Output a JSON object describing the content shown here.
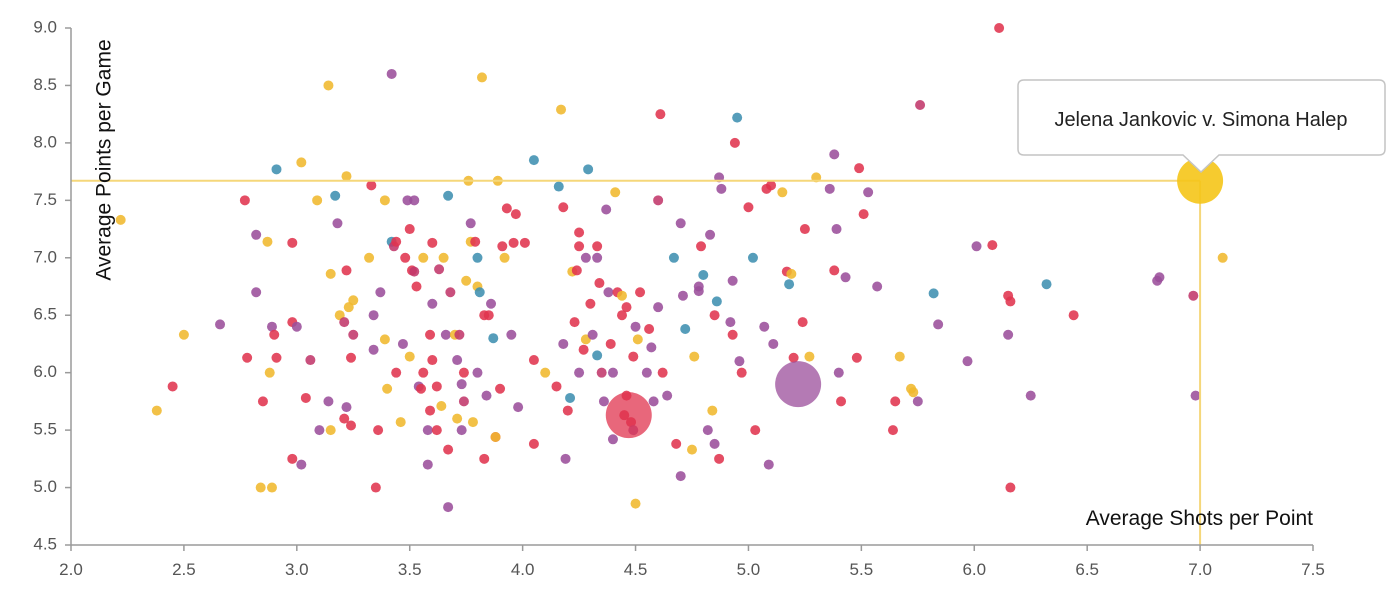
{
  "chart_data": {
    "type": "scatter",
    "xlabel": "Average Shots per Point",
    "ylabel": "Average Points per Game",
    "xlim": [
      2.0,
      7.5
    ],
    "ylim": [
      4.5,
      9.0
    ],
    "x_ticks": [
      "2.0",
      "2.5",
      "3.0",
      "3.5",
      "4.0",
      "4.5",
      "5.0",
      "5.5",
      "6.0",
      "6.5",
      "7.0",
      "7.5"
    ],
    "y_ticks": [
      "4.5",
      "5.0",
      "5.5",
      "6.0",
      "6.5",
      "7.0",
      "7.5",
      "8.0",
      "8.5",
      "9.0"
    ],
    "grid": false,
    "colors": {
      "crimson": "#e0344f",
      "purple": "#9b4e9b",
      "gold": "#f0b82e",
      "teal": "#3f8fb0",
      "magenta": "#c2386b",
      "highlight": "#f5c518",
      "crosshair": "#f5d77a"
    },
    "highlighted": {
      "x": 7.0,
      "y": 7.67,
      "label": "Jelena Jankovic v. Simona Halep",
      "color": "#f5c518"
    },
    "large_points": [
      {
        "x": 4.47,
        "y": 5.63,
        "color": "#e0344f"
      },
      {
        "x": 5.22,
        "y": 5.9,
        "color": "#9b4e9b"
      }
    ],
    "points": [
      [
        2.22,
        7.33,
        "gold"
      ],
      [
        2.45,
        5.88,
        "crimson"
      ],
      [
        2.38,
        5.67,
        "gold"
      ],
      [
        2.5,
        6.33,
        "gold"
      ],
      [
        2.66,
        6.42,
        "purple"
      ],
      [
        2.77,
        7.5,
        "crimson"
      ],
      [
        2.78,
        6.13,
        "crimson"
      ],
      [
        2.82,
        7.2,
        "purple"
      ],
      [
        2.82,
        6.7,
        "purple"
      ],
      [
        2.85,
        5.75,
        "crimson"
      ],
      [
        2.87,
        7.14,
        "gold"
      ],
      [
        2.84,
        5.0,
        "gold"
      ],
      [
        2.89,
        5.0,
        "gold"
      ],
      [
        2.88,
        6.0,
        "gold"
      ],
      [
        2.89,
        6.4,
        "purple"
      ],
      [
        2.9,
        6.33,
        "crimson"
      ],
      [
        2.91,
        6.13,
        "crimson"
      ],
      [
        2.91,
        7.77,
        "teal"
      ],
      [
        2.98,
        7.13,
        "crimson"
      ],
      [
        2.98,
        6.44,
        "crimson"
      ],
      [
        2.98,
        5.25,
        "crimson"
      ],
      [
        3.0,
        6.4,
        "purple"
      ],
      [
        3.02,
        7.83,
        "gold"
      ],
      [
        3.02,
        5.2,
        "purple"
      ],
      [
        3.04,
        5.78,
        "crimson"
      ],
      [
        3.06,
        6.11,
        "magenta"
      ],
      [
        3.09,
        7.5,
        "gold"
      ],
      [
        3.1,
        5.5,
        "purple"
      ],
      [
        3.14,
        8.5,
        "gold"
      ],
      [
        3.14,
        5.75,
        "purple"
      ],
      [
        3.15,
        6.86,
        "gold"
      ],
      [
        3.15,
        5.5,
        "gold"
      ],
      [
        3.17,
        7.54,
        "teal"
      ],
      [
        3.18,
        7.3,
        "purple"
      ],
      [
        3.19,
        6.5,
        "gold"
      ],
      [
        3.21,
        5.6,
        "crimson"
      ],
      [
        3.22,
        6.89,
        "crimson"
      ],
      [
        3.21,
        6.44,
        "magenta"
      ],
      [
        3.22,
        5.7,
        "purple"
      ],
      [
        3.22,
        7.71,
        "gold"
      ],
      [
        3.23,
        6.57,
        "gold"
      ],
      [
        3.24,
        5.54,
        "crimson"
      ],
      [
        3.24,
        6.13,
        "crimson"
      ],
      [
        3.25,
        6.63,
        "gold"
      ],
      [
        3.25,
        6.33,
        "magenta"
      ],
      [
        3.32,
        7.0,
        "gold"
      ],
      [
        3.33,
        7.63,
        "crimson"
      ],
      [
        3.34,
        6.5,
        "purple"
      ],
      [
        3.34,
        6.2,
        "purple"
      ],
      [
        3.35,
        5.0,
        "crimson"
      ],
      [
        3.36,
        5.5,
        "crimson"
      ],
      [
        3.37,
        6.7,
        "purple"
      ],
      [
        3.39,
        7.5,
        "gold"
      ],
      [
        3.39,
        6.29,
        "gold"
      ],
      [
        3.4,
        5.86,
        "gold"
      ],
      [
        3.42,
        8.6,
        "purple"
      ],
      [
        3.42,
        7.14,
        "teal"
      ],
      [
        3.43,
        7.1,
        "magenta"
      ],
      [
        3.44,
        7.14,
        "crimson"
      ],
      [
        3.44,
        6.0,
        "crimson"
      ],
      [
        3.46,
        5.57,
        "gold"
      ],
      [
        3.47,
        6.25,
        "purple"
      ],
      [
        3.48,
        7.0,
        "crimson"
      ],
      [
        3.49,
        7.5,
        "purple"
      ],
      [
        3.5,
        6.14,
        "gold"
      ],
      [
        3.5,
        7.25,
        "crimson"
      ],
      [
        3.51,
        6.89,
        "crimson"
      ],
      [
        3.52,
        7.5,
        "purple"
      ],
      [
        3.52,
        6.88,
        "magenta"
      ],
      [
        3.53,
        6.75,
        "crimson"
      ],
      [
        3.54,
        5.88,
        "purple"
      ],
      [
        3.55,
        5.86,
        "crimson"
      ],
      [
        3.56,
        6.0,
        "crimson"
      ],
      [
        3.56,
        7.0,
        "gold"
      ],
      [
        3.58,
        5.5,
        "purple"
      ],
      [
        3.58,
        5.2,
        "purple"
      ],
      [
        3.59,
        6.33,
        "crimson"
      ],
      [
        3.59,
        5.67,
        "crimson"
      ],
      [
        3.6,
        6.6,
        "purple"
      ],
      [
        3.6,
        6.11,
        "crimson"
      ],
      [
        3.6,
        7.13,
        "crimson"
      ],
      [
        3.62,
        5.88,
        "crimson"
      ],
      [
        3.62,
        5.5,
        "crimson"
      ],
      [
        3.63,
        6.9,
        "magenta"
      ],
      [
        3.64,
        5.71,
        "gold"
      ],
      [
        3.65,
        7.0,
        "gold"
      ],
      [
        3.66,
        6.33,
        "purple"
      ],
      [
        3.67,
        7.54,
        "teal"
      ],
      [
        3.67,
        5.33,
        "crimson"
      ],
      [
        3.67,
        4.83,
        "purple"
      ],
      [
        3.68,
        6.7,
        "magenta"
      ],
      [
        3.7,
        6.33,
        "gold"
      ],
      [
        3.71,
        6.11,
        "purple"
      ],
      [
        3.71,
        5.6,
        "gold"
      ],
      [
        3.72,
        6.33,
        "magenta"
      ],
      [
        3.73,
        5.9,
        "purple"
      ],
      [
        3.73,
        5.5,
        "purple"
      ],
      [
        3.74,
        6.0,
        "crimson"
      ],
      [
        3.74,
        5.75,
        "magenta"
      ],
      [
        3.75,
        6.8,
        "gold"
      ],
      [
        3.76,
        7.67,
        "gold"
      ],
      [
        3.77,
        7.3,
        "purple"
      ],
      [
        3.77,
        7.14,
        "gold"
      ],
      [
        3.78,
        5.57,
        "gold"
      ],
      [
        3.79,
        7.14,
        "crimson"
      ],
      [
        3.8,
        7.0,
        "teal"
      ],
      [
        3.8,
        6.0,
        "purple"
      ],
      [
        3.8,
        6.75,
        "gold"
      ],
      [
        3.81,
        6.7,
        "teal"
      ],
      [
        3.82,
        8.57,
        "gold"
      ],
      [
        3.83,
        6.5,
        "crimson"
      ],
      [
        3.83,
        5.25,
        "crimson"
      ],
      [
        3.84,
        5.8,
        "purple"
      ],
      [
        3.85,
        6.5,
        "crimson"
      ],
      [
        3.86,
        6.6,
        "purple"
      ],
      [
        3.87,
        6.3,
        "teal"
      ],
      [
        3.88,
        5.44,
        "crimson"
      ],
      [
        3.88,
        5.44,
        "gold"
      ],
      [
        3.89,
        7.67,
        "gold"
      ],
      [
        3.9,
        5.86,
        "crimson"
      ],
      [
        3.91,
        7.1,
        "crimson"
      ],
      [
        3.92,
        7.0,
        "gold"
      ],
      [
        3.93,
        7.43,
        "crimson"
      ],
      [
        3.95,
        6.33,
        "purple"
      ],
      [
        3.96,
        7.13,
        "crimson"
      ],
      [
        3.97,
        7.38,
        "crimson"
      ],
      [
        3.98,
        5.7,
        "purple"
      ],
      [
        4.01,
        7.13,
        "crimson"
      ],
      [
        4.05,
        7.85,
        "teal"
      ],
      [
        4.05,
        6.11,
        "crimson"
      ],
      [
        4.05,
        5.38,
        "crimson"
      ],
      [
        4.1,
        6.0,
        "gold"
      ],
      [
        4.15,
        5.88,
        "crimson"
      ],
      [
        4.17,
        8.29,
        "gold"
      ],
      [
        4.16,
        7.62,
        "teal"
      ],
      [
        4.18,
        7.44,
        "crimson"
      ],
      [
        4.18,
        6.25,
        "purple"
      ],
      [
        4.19,
        5.25,
        "purple"
      ],
      [
        4.2,
        5.67,
        "crimson"
      ],
      [
        4.21,
        5.78,
        "teal"
      ],
      [
        4.22,
        6.88,
        "gold"
      ],
      [
        4.24,
        6.89,
        "crimson"
      ],
      [
        4.25,
        7.22,
        "crimson"
      ],
      [
        4.23,
        6.44,
        "crimson"
      ],
      [
        4.25,
        6.0,
        "purple"
      ],
      [
        4.25,
        7.1,
        "crimson"
      ],
      [
        4.27,
        6.2,
        "crimson"
      ],
      [
        4.28,
        6.29,
        "gold"
      ],
      [
        4.28,
        7.0,
        "purple"
      ],
      [
        4.29,
        7.77,
        "teal"
      ],
      [
        4.3,
        6.6,
        "crimson"
      ],
      [
        4.31,
        6.33,
        "purple"
      ],
      [
        4.33,
        7.1,
        "crimson"
      ],
      [
        4.33,
        7.0,
        "purple"
      ],
      [
        4.33,
        6.15,
        "teal"
      ],
      [
        4.34,
        6.78,
        "crimson"
      ],
      [
        4.35,
        6.0,
        "magenta"
      ],
      [
        4.36,
        5.75,
        "purple"
      ],
      [
        4.37,
        7.42,
        "purple"
      ],
      [
        4.38,
        6.7,
        "purple"
      ],
      [
        4.39,
        6.25,
        "crimson"
      ],
      [
        4.4,
        5.42,
        "purple"
      ],
      [
        4.41,
        7.57,
        "gold"
      ],
      [
        4.4,
        6.0,
        "purple"
      ],
      [
        4.42,
        6.7,
        "crimson"
      ],
      [
        4.44,
        6.67,
        "gold"
      ],
      [
        4.44,
        6.5,
        "crimson"
      ],
      [
        4.45,
        5.63,
        "crimson"
      ],
      [
        4.46,
        6.57,
        "crimson"
      ],
      [
        4.46,
        5.8,
        "crimson"
      ],
      [
        4.48,
        5.57,
        "crimson"
      ],
      [
        4.49,
        6.14,
        "crimson"
      ],
      [
        4.49,
        5.5,
        "purple"
      ],
      [
        4.5,
        6.4,
        "purple"
      ],
      [
        4.5,
        4.86,
        "gold"
      ],
      [
        4.51,
        6.29,
        "gold"
      ],
      [
        4.52,
        6.7,
        "crimson"
      ],
      [
        4.55,
        6.0,
        "purple"
      ],
      [
        4.56,
        6.38,
        "crimson"
      ],
      [
        4.57,
        6.22,
        "purple"
      ],
      [
        4.58,
        5.75,
        "purple"
      ],
      [
        4.6,
        7.5,
        "magenta"
      ],
      [
        4.6,
        6.57,
        "purple"
      ],
      [
        4.61,
        8.25,
        "crimson"
      ],
      [
        4.62,
        6.0,
        "crimson"
      ],
      [
        4.64,
        5.8,
        "purple"
      ],
      [
        4.67,
        7.0,
        "teal"
      ],
      [
        4.68,
        5.38,
        "crimson"
      ],
      [
        4.7,
        5.1,
        "purple"
      ],
      [
        4.7,
        7.3,
        "purple"
      ],
      [
        4.71,
        6.67,
        "purple"
      ],
      [
        4.72,
        6.38,
        "teal"
      ],
      [
        4.75,
        5.33,
        "gold"
      ],
      [
        4.76,
        6.14,
        "gold"
      ],
      [
        4.78,
        6.71,
        "purple"
      ],
      [
        4.78,
        6.75,
        "purple"
      ],
      [
        4.79,
        7.1,
        "crimson"
      ],
      [
        4.8,
        6.85,
        "teal"
      ],
      [
        4.82,
        5.5,
        "purple"
      ],
      [
        4.83,
        7.2,
        "purple"
      ],
      [
        4.84,
        5.67,
        "gold"
      ],
      [
        4.85,
        6.5,
        "crimson"
      ],
      [
        4.85,
        5.38,
        "purple"
      ],
      [
        4.86,
        6.62,
        "teal"
      ],
      [
        4.87,
        7.7,
        "purple"
      ],
      [
        4.87,
        5.25,
        "crimson"
      ],
      [
        4.88,
        7.6,
        "purple"
      ],
      [
        4.92,
        6.44,
        "purple"
      ],
      [
        4.93,
        6.8,
        "purple"
      ],
      [
        4.93,
        6.33,
        "crimson"
      ],
      [
        4.94,
        8.0,
        "crimson"
      ],
      [
        4.95,
        8.22,
        "teal"
      ],
      [
        4.96,
        6.1,
        "purple"
      ],
      [
        4.97,
        6.0,
        "crimson"
      ],
      [
        5.0,
        7.44,
        "crimson"
      ],
      [
        5.02,
        7.0,
        "teal"
      ],
      [
        5.03,
        5.5,
        "crimson"
      ],
      [
        5.07,
        6.4,
        "purple"
      ],
      [
        5.08,
        7.6,
        "crimson"
      ],
      [
        5.09,
        5.2,
        "purple"
      ],
      [
        5.1,
        7.63,
        "crimson"
      ],
      [
        5.11,
        6.25,
        "purple"
      ],
      [
        5.15,
        7.57,
        "gold"
      ],
      [
        5.17,
        6.88,
        "crimson"
      ],
      [
        5.18,
        6.77,
        "teal"
      ],
      [
        5.19,
        6.86,
        "gold"
      ],
      [
        5.2,
        6.13,
        "crimson"
      ],
      [
        5.24,
        6.44,
        "crimson"
      ],
      [
        5.25,
        7.25,
        "crimson"
      ],
      [
        5.27,
        6.14,
        "gold"
      ],
      [
        5.3,
        7.7,
        "gold"
      ],
      [
        5.36,
        7.6,
        "purple"
      ],
      [
        5.38,
        7.9,
        "purple"
      ],
      [
        5.38,
        6.89,
        "crimson"
      ],
      [
        5.39,
        7.25,
        "purple"
      ],
      [
        5.4,
        6.0,
        "purple"
      ],
      [
        5.41,
        5.75,
        "crimson"
      ],
      [
        5.43,
        6.83,
        "purple"
      ],
      [
        5.48,
        6.13,
        "crimson"
      ],
      [
        5.49,
        7.78,
        "crimson"
      ],
      [
        5.51,
        7.38,
        "crimson"
      ],
      [
        5.53,
        7.57,
        "purple"
      ],
      [
        5.57,
        6.75,
        "purple"
      ],
      [
        5.64,
        5.5,
        "crimson"
      ],
      [
        5.65,
        5.75,
        "crimson"
      ],
      [
        5.67,
        6.14,
        "gold"
      ],
      [
        5.72,
        5.86,
        "gold"
      ],
      [
        5.73,
        5.83,
        "gold"
      ],
      [
        5.75,
        5.75,
        "purple"
      ],
      [
        5.76,
        8.33,
        "magenta"
      ],
      [
        5.82,
        6.69,
        "teal"
      ],
      [
        5.84,
        6.42,
        "purple"
      ],
      [
        5.97,
        6.1,
        "purple"
      ],
      [
        6.01,
        7.1,
        "purple"
      ],
      [
        6.08,
        7.11,
        "crimson"
      ],
      [
        6.11,
        9.0,
        "crimson"
      ],
      [
        6.15,
        6.33,
        "purple"
      ],
      [
        6.15,
        6.67,
        "crimson"
      ],
      [
        6.16,
        6.62,
        "crimson"
      ],
      [
        6.16,
        5.0,
        "crimson"
      ],
      [
        6.25,
        5.8,
        "purple"
      ],
      [
        6.32,
        6.77,
        "teal"
      ],
      [
        6.44,
        6.5,
        "crimson"
      ],
      [
        6.81,
        6.8,
        "purple"
      ],
      [
        6.82,
        6.83,
        "purple"
      ],
      [
        6.97,
        6.67,
        "magenta"
      ],
      [
        6.98,
        5.8,
        "purple"
      ],
      [
        7.1,
        7.0,
        "gold"
      ]
    ]
  }
}
